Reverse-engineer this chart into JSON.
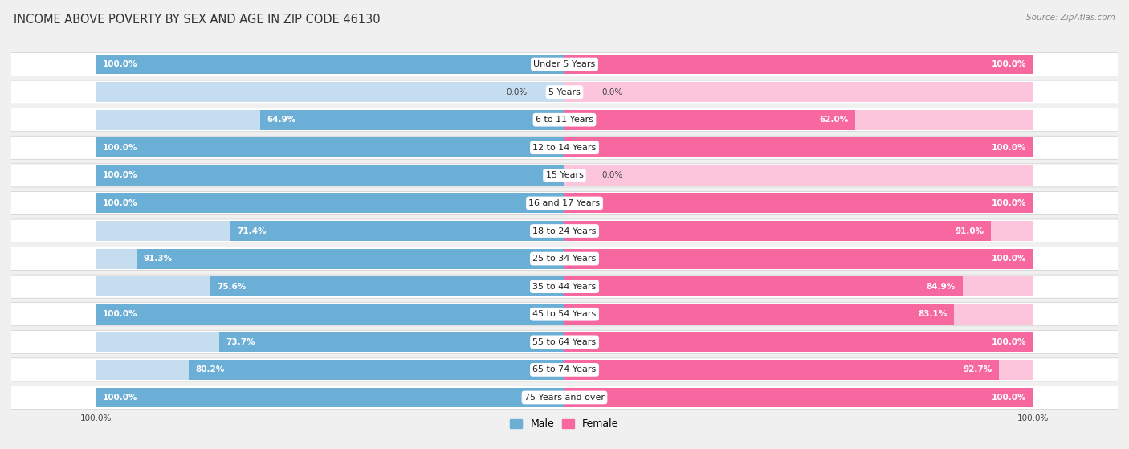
{
  "title": "INCOME ABOVE POVERTY BY SEX AND AGE IN ZIP CODE 46130",
  "source": "Source: ZipAtlas.com",
  "categories": [
    "Under 5 Years",
    "5 Years",
    "6 to 11 Years",
    "12 to 14 Years",
    "15 Years",
    "16 and 17 Years",
    "18 to 24 Years",
    "25 to 34 Years",
    "35 to 44 Years",
    "45 to 54 Years",
    "55 to 64 Years",
    "65 to 74 Years",
    "75 Years and over"
  ],
  "male_values": [
    100.0,
    0.0,
    64.9,
    100.0,
    100.0,
    100.0,
    71.4,
    91.3,
    75.6,
    100.0,
    73.7,
    80.2,
    100.0
  ],
  "female_values": [
    100.0,
    0.0,
    62.0,
    100.0,
    0.0,
    100.0,
    91.0,
    100.0,
    84.9,
    83.1,
    100.0,
    92.7,
    100.0
  ],
  "male_color": "#6baed6",
  "female_color": "#f768a1",
  "male_light_color": "#c6dcef",
  "female_light_color": "#fcc5dc",
  "background_color": "#f0f0f0",
  "row_bg_color": "#ffffff",
  "title_fontsize": 10.5,
  "label_fontsize": 8.0,
  "value_fontsize": 7.5,
  "source_fontsize": 7.5
}
